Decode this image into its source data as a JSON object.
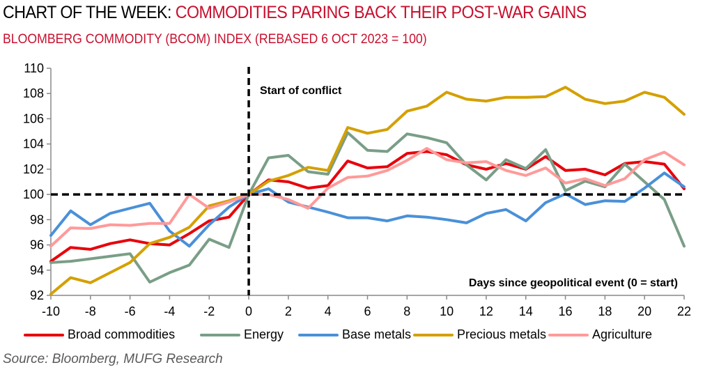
{
  "header": {
    "title_prefix": "CHART OF THE WEEK: ",
    "title_main": "COMMODITIES PARING BACK THEIR POST-WAR GAINS",
    "subtitle": "BLOOMBERG COMMODITY (BCOM) INDEX (REBASED 6 OCT 2023 = 100)",
    "accent_color": "#c8102e"
  },
  "source": "Source: Bloomberg, MUFG Research",
  "chart_data": {
    "type": "line",
    "title": "Bloomberg Commodity (BCOM) Index (rebased 6 Oct 2023 = 100)",
    "xlabel": "Days since geopolitical event (0 = start)",
    "ylabel": "",
    "xlim": [
      -10,
      22
    ],
    "ylim": [
      92,
      110
    ],
    "x_ticks": [
      -10,
      -8,
      -6,
      -4,
      -2,
      0,
      2,
      4,
      6,
      8,
      10,
      12,
      14,
      16,
      18,
      20,
      22
    ],
    "y_ticks": [
      92,
      94,
      96,
      98,
      100,
      102,
      104,
      106,
      108,
      110
    ],
    "grid": false,
    "legend_position": "bottom",
    "reference_lines": {
      "vertical_x": 0,
      "horizontal_y": 100,
      "vertical_label": "Start of conflict"
    },
    "annotations": [
      "Start of conflict",
      "Days since geopolitical event (0 = start)"
    ],
    "x": [
      -10,
      -9,
      -8,
      -7,
      -6,
      -5,
      -4,
      -3,
      -2,
      -1,
      0,
      1,
      2,
      3,
      4,
      5,
      6,
      7,
      8,
      9,
      10,
      11,
      12,
      13,
      14,
      15,
      16,
      17,
      18,
      19,
      20,
      21,
      22
    ],
    "series": [
      {
        "name": "Broad commodities",
        "color": "#e8000b",
        "values": [
          94.7,
          95.8,
          95.65,
          96.1,
          96.4,
          96.1,
          96.0,
          96.9,
          97.9,
          98.2,
          100,
          101.15,
          101.0,
          100.5,
          100.7,
          102.65,
          102.1,
          102.2,
          103.25,
          103.4,
          103.15,
          102.35,
          102.0,
          102.45,
          102.0,
          103.0,
          101.9,
          102.0,
          101.55,
          102.45,
          102.6,
          102.4,
          100.45
        ]
      },
      {
        "name": "Energy",
        "color": "#7a9e87",
        "values": [
          94.6,
          94.7,
          94.9,
          95.1,
          95.3,
          93.05,
          93.8,
          94.4,
          96.45,
          95.8,
          100,
          102.9,
          103.1,
          101.8,
          101.6,
          104.9,
          103.5,
          103.4,
          104.8,
          104.5,
          104.1,
          102.35,
          101.15,
          102.75,
          102.05,
          103.55,
          100.3,
          101.05,
          100.6,
          102.4,
          101.0,
          99.6,
          95.9
        ]
      },
      {
        "name": "Base metals",
        "color": "#4a90d9",
        "values": [
          96.75,
          98.7,
          97.6,
          98.5,
          98.9,
          99.3,
          97.1,
          95.9,
          97.6,
          99.0,
          100,
          100.45,
          99.4,
          99.0,
          98.6,
          98.15,
          98.15,
          97.9,
          98.3,
          98.2,
          98.0,
          97.75,
          98.5,
          98.8,
          97.9,
          99.35,
          100.05,
          99.2,
          99.5,
          99.45,
          100.5,
          101.7,
          100.6
        ]
      },
      {
        "name": "Precious metals",
        "color": "#d4a000",
        "values": [
          92.1,
          93.4,
          93.0,
          93.8,
          94.6,
          96.1,
          96.6,
          97.4,
          99.1,
          99.5,
          100,
          101.05,
          101.5,
          102.15,
          101.9,
          105.3,
          104.85,
          105.15,
          106.6,
          107.0,
          108.1,
          107.55,
          107.4,
          107.7,
          107.7,
          107.75,
          108.5,
          107.55,
          107.2,
          107.4,
          108.1,
          107.7,
          106.35
        ]
      },
      {
        "name": "Agriculture",
        "color": "#ff9a9a",
        "values": [
          95.9,
          97.35,
          97.3,
          97.6,
          97.55,
          97.7,
          97.7,
          100.0,
          98.9,
          99.4,
          100,
          100.0,
          99.6,
          98.9,
          100.5,
          101.35,
          101.45,
          101.9,
          102.7,
          103.65,
          102.75,
          102.5,
          102.6,
          101.9,
          101.5,
          102.1,
          100.9,
          101.25,
          100.7,
          101.25,
          102.75,
          103.35,
          102.35
        ]
      }
    ]
  }
}
